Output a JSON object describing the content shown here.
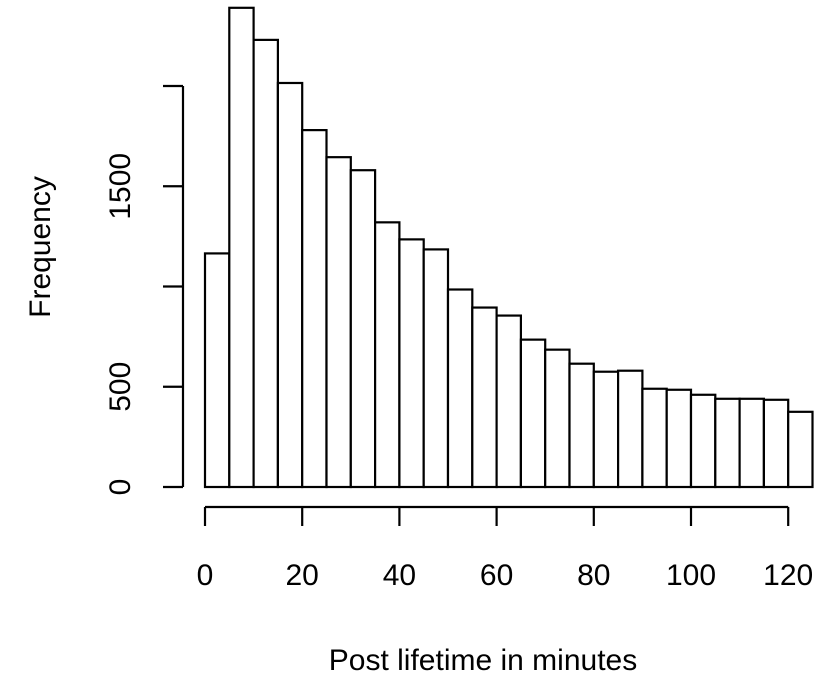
{
  "chart_data": {
    "type": "bar",
    "title": "",
    "xlabel": "Post lifetime in minutes",
    "ylabel": "Frequency",
    "bin_edges": [
      0,
      5,
      10,
      15,
      20,
      25,
      30,
      35,
      40,
      45,
      50,
      55,
      60,
      65,
      70,
      75,
      80,
      85,
      90,
      95,
      100,
      105,
      110,
      115,
      120,
      125
    ],
    "values": [
      1165,
      2390,
      2230,
      2015,
      1780,
      1645,
      1580,
      1320,
      1235,
      1185,
      985,
      895,
      855,
      735,
      685,
      615,
      575,
      580,
      490,
      485,
      460,
      440,
      440,
      435,
      375
    ],
    "xlim": [
      0,
      125
    ],
    "ylim": [
      0,
      2000
    ],
    "xticks": [
      0,
      20,
      40,
      60,
      80,
      100,
      120
    ],
    "xtick_labels": [
      "0",
      "20",
      "40",
      "60",
      "80",
      "100",
      "120"
    ],
    "yticks": [
      0,
      500,
      1000,
      1500,
      2000
    ],
    "ytick_labels": [
      "0",
      "500",
      "",
      "1500",
      ""
    ],
    "grid": false,
    "bar_fill": "#ffffff",
    "bar_stroke": "#000000"
  }
}
